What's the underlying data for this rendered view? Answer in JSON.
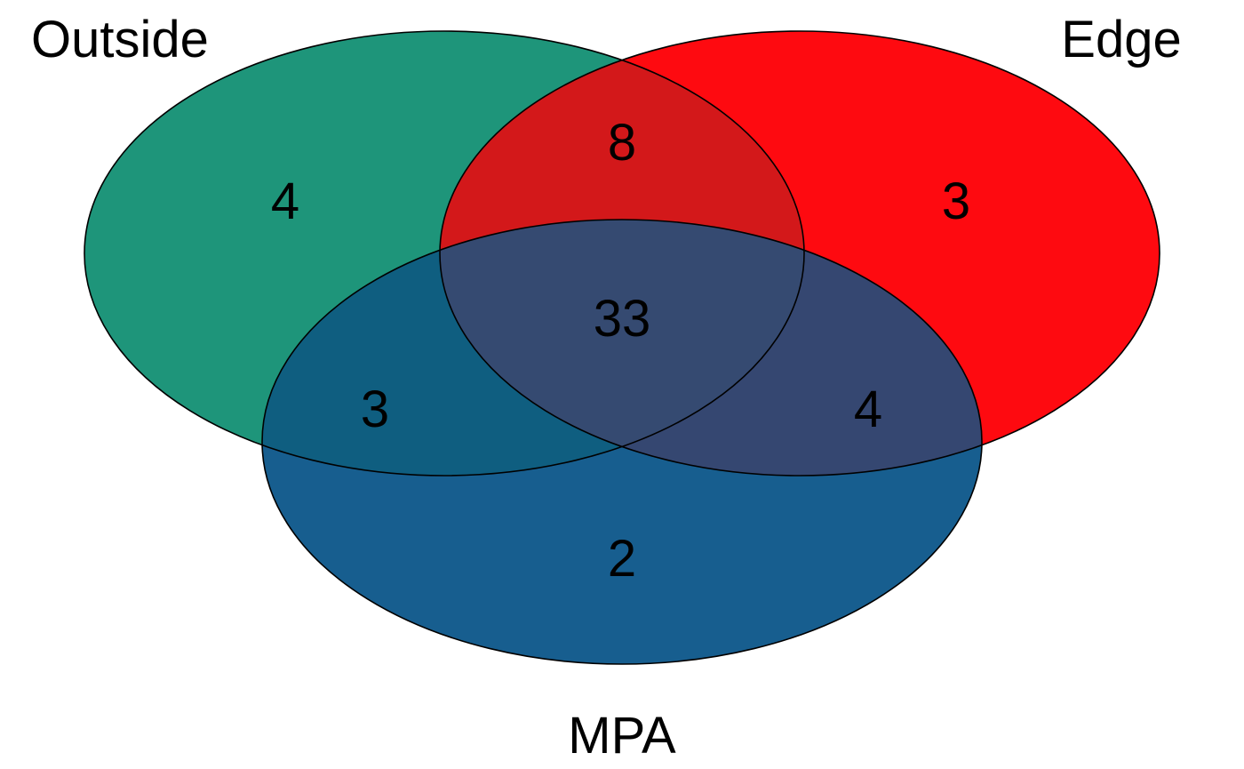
{
  "venn": {
    "sets": {
      "outside": {
        "label": "Outside",
        "color": "#1E957A"
      },
      "edge": {
        "label": "Edge",
        "color": "#FE0A10"
      },
      "mpa": {
        "label": "MPA",
        "color": "#175E8F"
      }
    },
    "counts": {
      "outside_only": "4",
      "edge_only": "3",
      "mpa_only": "2",
      "outside_edge": "8",
      "outside_mpa": "3",
      "edge_mpa": "4",
      "all_three": "33"
    },
    "overlap_colors": {
      "outside_edge": "#D3181A",
      "outside_mpa": "#0F5E80",
      "edge_mpa": "#354771",
      "all_three": "#354A71"
    }
  }
}
